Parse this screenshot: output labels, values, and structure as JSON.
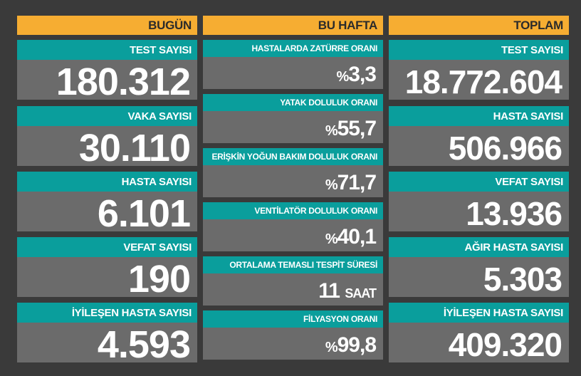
{
  "columns": {
    "today": {
      "title": "BUGÜN",
      "items": [
        {
          "label": "TEST SAYISI",
          "value": "180.312"
        },
        {
          "label": "VAKA SAYISI",
          "value": "30.110"
        },
        {
          "label": "HASTA SAYISI",
          "value": "6.101"
        },
        {
          "label": "VEFAT SAYISI",
          "value": "190"
        },
        {
          "label": "İYİLEŞEN HASTA SAYISI",
          "value": "4.593"
        }
      ]
    },
    "week": {
      "title": "BU HAFTA",
      "items": [
        {
          "label": "HASTALARDA ZATÜRRE ORANI",
          "prefix": "%",
          "value": "3,3"
        },
        {
          "label": "YATAK DOLULUK ORANI",
          "prefix": "%",
          "value": "55,7"
        },
        {
          "label": "ERİŞKİN YOĞUN BAKIM DOLULUK ORANI",
          "prefix": "%",
          "value": "71,7"
        },
        {
          "label": "VENTİLATÖR DOLULUK ORANI",
          "prefix": "%",
          "value": "40,1"
        },
        {
          "label": "ORTALAMA TEMASLI TESPİT SÜRESİ",
          "value": "11",
          "suffix": "SAAT"
        },
        {
          "label": "FİLYASYON ORANI",
          "prefix": "%",
          "value": "99,8"
        }
      ]
    },
    "total": {
      "title": "TOPLAM",
      "items": [
        {
          "label": "TEST SAYISI",
          "value": "18.772.604"
        },
        {
          "label": "HASTA SAYISI",
          "value": "506.966"
        },
        {
          "label": "VEFAT SAYISI",
          "value": "13.936"
        },
        {
          "label": "AĞIR HASTA SAYISI",
          "value": "5.303"
        },
        {
          "label": "İYİLEŞEN HASTA SAYISI",
          "value": "409.320"
        }
      ]
    }
  },
  "colors": {
    "header": "#f6ad32",
    "label": "#0a9e9c",
    "value_bg": "#6b6b6b",
    "background": "#3a3a3a"
  }
}
